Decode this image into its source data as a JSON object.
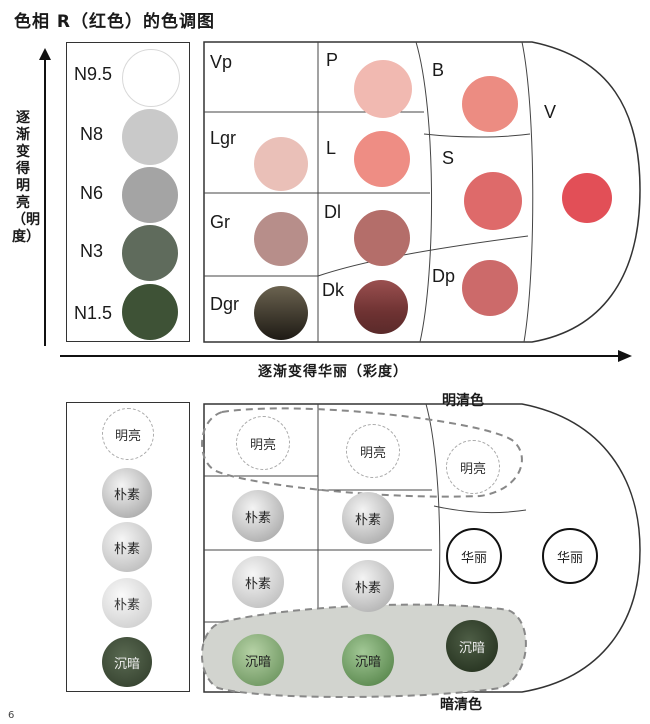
{
  "title": "色相 R（红色）的色调图",
  "axis": {
    "vertical": "逐渐变得明亮（明度）",
    "horizontal": "逐渐变得华丽（彩度）"
  },
  "grays": [
    {
      "label": "N9.5",
      "color": "#ffffff"
    },
    {
      "label": "N8",
      "color": "#c9c9c9"
    },
    {
      "label": "N6",
      "color": "#a4a4a4"
    },
    {
      "label": "N3",
      "color": "#5f6b5c"
    },
    {
      "label": "N1.5",
      "color": "#3e5236"
    }
  ],
  "tones": [
    {
      "code": "Vp",
      "color": null
    },
    {
      "code": "P",
      "color": "#f1b9b1"
    },
    {
      "code": "B",
      "color": "#ec8c82"
    },
    {
      "code": "V",
      "color": "#e24f57"
    },
    {
      "code": "Lgr",
      "color": "#eac0b8"
    },
    {
      "code": "L",
      "color": "#ee8d84"
    },
    {
      "code": "S",
      "color": "#de6a6a"
    },
    {
      "code": "Gr",
      "color": "#b78e8a"
    },
    {
      "code": "Dl",
      "color": "#b46e6a"
    },
    {
      "code": "Dp",
      "color": "#cc6a6a"
    },
    {
      "code": "Dgr",
      "color": "#3d3428"
    },
    {
      "code": "Dk",
      "color": "#7a3e3e"
    }
  ],
  "lower": {
    "bright_clear": "明清色",
    "dark_clear": "暗清色",
    "labels": {
      "bright": "明亮",
      "plain": "朴素",
      "vivid": "华丽",
      "dark": "沉暗"
    }
  },
  "page_number": "6"
}
